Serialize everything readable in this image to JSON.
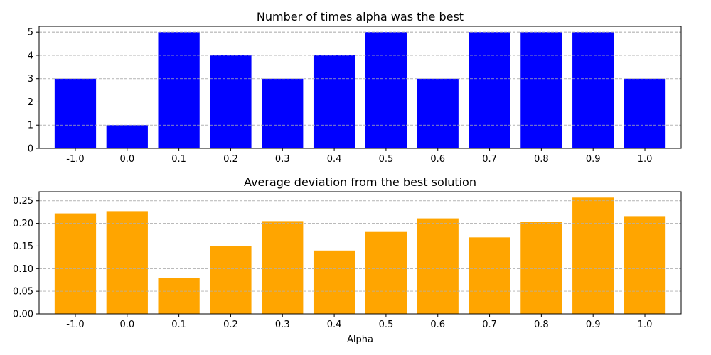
{
  "chart_data": [
    {
      "type": "bar",
      "title": "Number of times alpha was the best",
      "xlabel": "",
      "ylabel": "",
      "categories": [
        "-1.0",
        "0.0",
        "0.1",
        "0.2",
        "0.3",
        "0.4",
        "0.5",
        "0.6",
        "0.7",
        "0.8",
        "0.9",
        "1.0"
      ],
      "values": [
        3,
        1,
        5,
        4,
        3,
        4,
        5,
        3,
        5,
        5,
        5,
        3
      ],
      "ylim": [
        0,
        5.25
      ],
      "yticks": [
        "0",
        "1",
        "2",
        "3",
        "4",
        "5"
      ],
      "ytick_values": [
        0,
        1,
        2,
        3,
        4,
        5
      ],
      "color": "#0000ff",
      "grid": "y-dashed"
    },
    {
      "type": "bar",
      "title": "Average deviation from the best solution",
      "xlabel": "Alpha",
      "ylabel": "",
      "categories": [
        "-1.0",
        "0.0",
        "0.1",
        "0.2",
        "0.3",
        "0.4",
        "0.5",
        "0.6",
        "0.7",
        "0.8",
        "0.9",
        "1.0"
      ],
      "values": [
        0.222,
        0.227,
        0.079,
        0.15,
        0.205,
        0.14,
        0.181,
        0.211,
        0.169,
        0.203,
        0.257,
        0.216
      ],
      "ylim": [
        0,
        0.27
      ],
      "yticks": [
        "0.00",
        "0.05",
        "0.10",
        "0.15",
        "0.20",
        "0.25"
      ],
      "ytick_values": [
        0,
        0.05,
        0.1,
        0.15,
        0.2,
        0.25
      ],
      "color": "#ffa500",
      "grid": "y-dashed"
    }
  ]
}
